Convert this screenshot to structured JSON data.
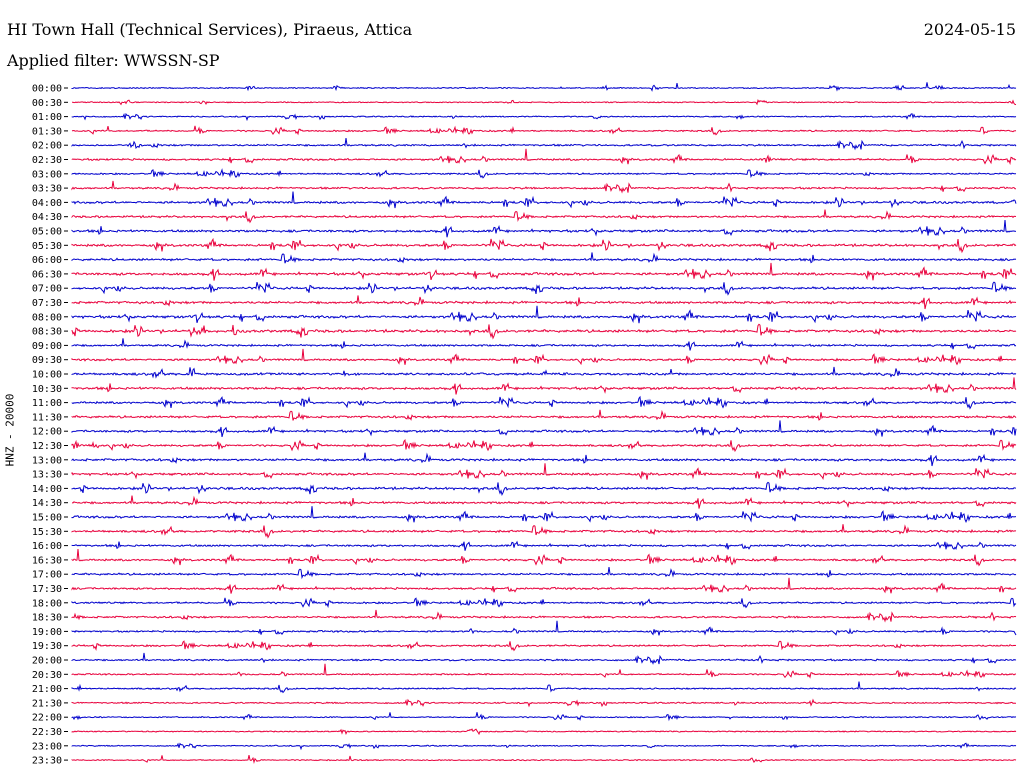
{
  "header": {
    "title": "HI Town Hall (Technical Services), Piraeus, Attica",
    "date": "2024-05-15",
    "filter": "Applied filter: WWSSN-SP"
  },
  "chart_data": {
    "type": "line",
    "ylabel": "HNZ - 20000",
    "colors": [
      "#0000cc",
      "#e8003c"
    ],
    "rows": [
      "00:00",
      "00:30",
      "01:00",
      "01:30",
      "02:00",
      "02:30",
      "03:00",
      "03:30",
      "04:00",
      "04:30",
      "05:00",
      "05:30",
      "06:00",
      "06:30",
      "07:00",
      "07:30",
      "08:00",
      "08:30",
      "09:00",
      "09:30",
      "10:00",
      "10:30",
      "11:00",
      "11:30",
      "12:00",
      "12:30",
      "13:00",
      "13:30",
      "14:00",
      "14:30",
      "15:00",
      "15:30",
      "16:00",
      "16:30",
      "17:00",
      "17:30",
      "18:00",
      "18:30",
      "19:00",
      "19:30",
      "20:00",
      "20:30",
      "21:00",
      "21:30",
      "22:00",
      "22:30",
      "23:00",
      "23:30"
    ],
    "activity": [
      0.15,
      0.1,
      0.2,
      0.35,
      0.5,
      0.55,
      0.4,
      0.55,
      0.75,
      0.65,
      0.8,
      0.85,
      0.75,
      0.9,
      0.8,
      0.85,
      0.9,
      0.95,
      0.6,
      0.65,
      0.85,
      0.8,
      0.7,
      0.75,
      0.7,
      0.65,
      0.8,
      0.75,
      0.8,
      0.75,
      0.7,
      0.75,
      0.6,
      0.65,
      0.6,
      0.6,
      0.5,
      0.55,
      0.45,
      0.5,
      0.45,
      0.3,
      0.35,
      0.3,
      0.15,
      0.15,
      0.12,
      0.1
    ]
  }
}
